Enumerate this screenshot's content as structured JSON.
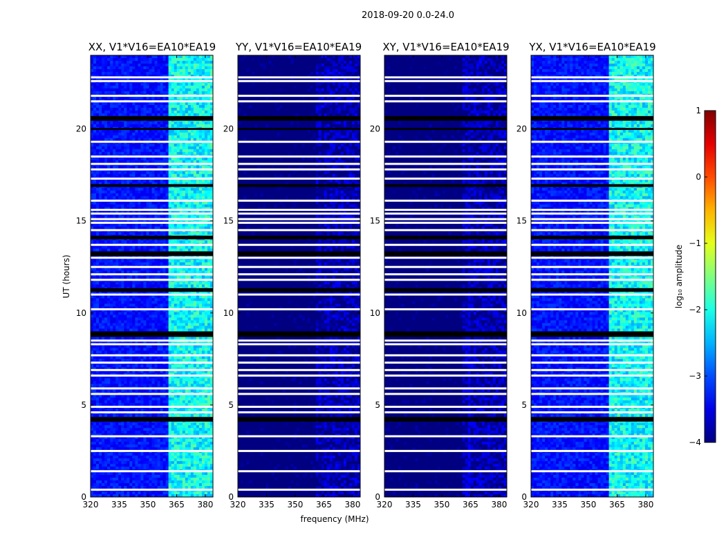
{
  "chart_data": {
    "type": "heatmap",
    "suptitle": "2018-09-20 0.0-24.0",
    "xlabel": "frequency (MHz)",
    "ylabel": "UT (hours)",
    "xlim": [
      320,
      384
    ],
    "ylim": [
      0,
      24
    ],
    "xticks": [
      320,
      335,
      350,
      365,
      380
    ],
    "yticks": [
      0,
      5,
      10,
      15,
      20
    ],
    "panels": [
      {
        "title": "XX, V1*V16=EA10*EA19",
        "pol": "XX",
        "base_level": -3.3,
        "band_level": -2.1
      },
      {
        "title": "YY, V1*V16=EA10*EA19",
        "pol": "YY",
        "base_level": -4.0,
        "band_level": -3.8
      },
      {
        "title": "XY, V1*V16=EA10*EA19",
        "pol": "XY",
        "base_level": -4.0,
        "band_level": -3.8
      },
      {
        "title": "YX, V1*V16=EA10*EA19",
        "pol": "YX",
        "base_level": -3.3,
        "band_level": -2.1
      }
    ],
    "bright_band_mhz": [
      360,
      384
    ],
    "blank_rows_ut": [
      0.4,
      1.4,
      2.5,
      3.3,
      4.6,
      4.9,
      5.6,
      5.9,
      6.6,
      6.9,
      7.3,
      7.7,
      8.3,
      8.5,
      10.2,
      11.0,
      11.8,
      12.1,
      12.5,
      13.0,
      13.7,
      14.5,
      14.9,
      15.1,
      15.4,
      15.6,
      16.1,
      17.3,
      17.8,
      18.1,
      18.5,
      19.3,
      21.5,
      21.8,
      22.6,
      22.8
    ],
    "gap_rows_ut": [
      [
        4.1,
        4.35
      ],
      [
        8.7,
        9.0
      ],
      [
        11.15,
        11.35
      ],
      [
        13.1,
        13.35
      ],
      [
        14.0,
        14.2
      ],
      [
        16.85,
        17.0
      ],
      [
        19.95,
        20.05
      ],
      [
        20.45,
        20.7
      ]
    ],
    "colorbar": {
      "label": "log₁₀ amplitude",
      "min": -4,
      "max": 1,
      "ticks": [
        "1",
        "0",
        "−1",
        "−2",
        "−3",
        "−4"
      ],
      "colormap": "jet"
    }
  }
}
